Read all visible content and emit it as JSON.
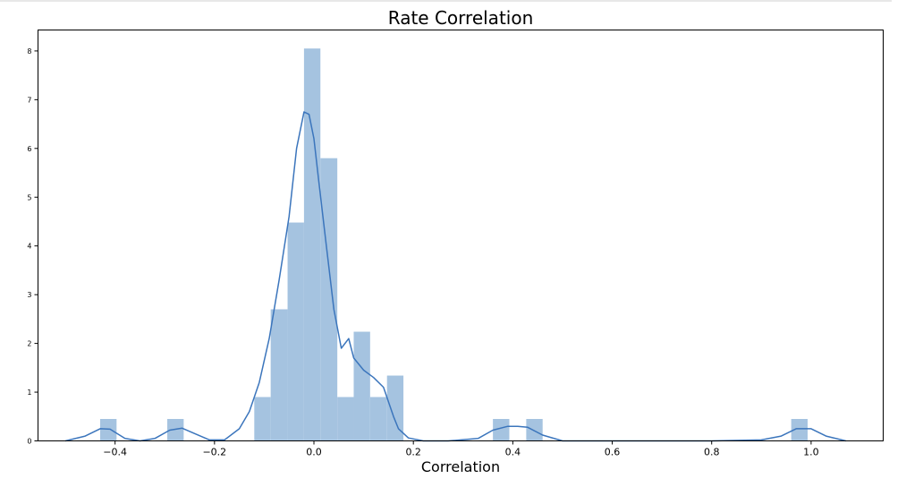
{
  "chart_data": {
    "type": "bar",
    "title": "Rate Correlation",
    "xlabel": "Correlation",
    "ylabel": "",
    "xlim": [
      -0.555,
      1.145
    ],
    "ylim": [
      0,
      8.43
    ],
    "xticks": [
      -0.4,
      -0.2,
      0.0,
      0.2,
      0.4,
      0.6,
      0.8,
      1.0
    ],
    "xtick_labels": [
      "−0.4",
      "−0.2",
      "0.0",
      "0.2",
      "0.4",
      "0.6",
      "0.8",
      "1.0"
    ],
    "yticks": [
      0,
      1,
      2,
      3,
      4,
      5,
      6,
      7,
      8
    ],
    "ytick_labels": [
      "0",
      "1",
      "2",
      "3",
      "4",
      "5",
      "6",
      "7",
      "8"
    ],
    "grid": false,
    "histogram": {
      "bins": [
        {
          "x0": -0.43,
          "x1": -0.397,
          "value": 0.45
        },
        {
          "x0": -0.295,
          "x1": -0.262,
          "value": 0.45
        },
        {
          "x0": -0.12,
          "x1": -0.087,
          "value": 0.9
        },
        {
          "x0": -0.087,
          "x1": -0.053,
          "value": 2.7
        },
        {
          "x0": -0.053,
          "x1": -0.02,
          "value": 4.48
        },
        {
          "x0": -0.02,
          "x1": 0.013,
          "value": 8.05
        },
        {
          "x0": 0.013,
          "x1": 0.047,
          "value": 5.8
        },
        {
          "x0": 0.047,
          "x1": 0.08,
          "value": 0.9
        },
        {
          "x0": 0.08,
          "x1": 0.113,
          "value": 2.24
        },
        {
          "x0": 0.113,
          "x1": 0.147,
          "value": 0.9
        },
        {
          "x0": 0.147,
          "x1": 0.18,
          "value": 1.34
        },
        {
          "x0": 0.36,
          "x1": 0.393,
          "value": 0.45
        },
        {
          "x0": 0.427,
          "x1": 0.46,
          "value": 0.45
        },
        {
          "x0": 0.96,
          "x1": 0.993,
          "value": 0.45
        }
      ]
    },
    "kde": {
      "x": [
        -0.5,
        -0.46,
        -0.43,
        -0.41,
        -0.38,
        -0.35,
        -0.32,
        -0.29,
        -0.265,
        -0.24,
        -0.21,
        -0.18,
        -0.15,
        -0.13,
        -0.11,
        -0.09,
        -0.07,
        -0.05,
        -0.035,
        -0.02,
        -0.01,
        0.0,
        0.01,
        0.025,
        0.04,
        0.055,
        0.07,
        0.08,
        0.1,
        0.12,
        0.14,
        0.16,
        0.17,
        0.19,
        0.22,
        0.27,
        0.33,
        0.36,
        0.39,
        0.41,
        0.43,
        0.46,
        0.5,
        0.6,
        0.7,
        0.8,
        0.9,
        0.94,
        0.97,
        1.0,
        1.03,
        1.07
      ],
      "y": [
        0.0,
        0.1,
        0.25,
        0.24,
        0.05,
        0.0,
        0.05,
        0.22,
        0.26,
        0.15,
        0.02,
        0.02,
        0.25,
        0.6,
        1.2,
        2.1,
        3.3,
        4.6,
        6.0,
        6.75,
        6.7,
        6.2,
        5.3,
        4.0,
        2.7,
        1.9,
        2.1,
        1.7,
        1.45,
        1.3,
        1.1,
        0.5,
        0.25,
        0.06,
        0.0,
        0.0,
        0.05,
        0.22,
        0.3,
        0.3,
        0.28,
        0.12,
        0.0,
        0.0,
        0.0,
        0.0,
        0.02,
        0.1,
        0.25,
        0.25,
        0.1,
        0.0
      ]
    },
    "colors": {
      "bar_fill": "#a5c3e0",
      "kde_line": "#3b75bc",
      "axis": "#000000"
    }
  }
}
